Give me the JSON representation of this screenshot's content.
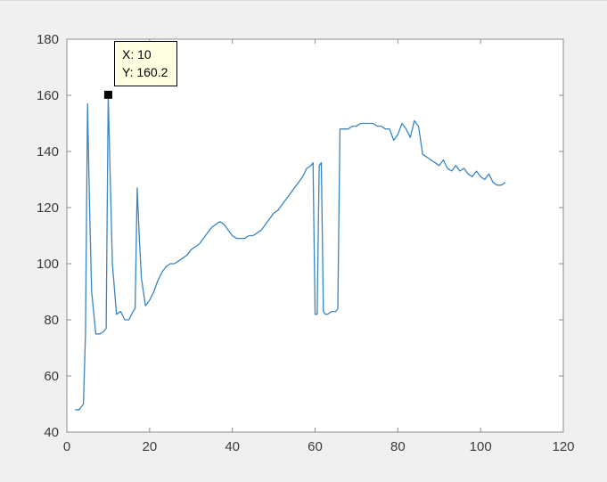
{
  "window": {
    "bg": "#f0f0f0",
    "plot_bg": "#ffffff"
  },
  "tooltip": {
    "line1": "X: 10",
    "line2": "Y: 160.2",
    "bg": "#ffffe1",
    "border_color": "#000000"
  },
  "chart_data": {
    "type": "line",
    "title": "",
    "xlabel": "",
    "ylabel": "",
    "xlim": [
      0,
      120
    ],
    "ylim": [
      40,
      180
    ],
    "xticks": [
      0,
      20,
      40,
      60,
      80,
      100,
      120
    ],
    "yticks": [
      40,
      60,
      80,
      100,
      120,
      140,
      160,
      180
    ],
    "grid": false,
    "legend": null,
    "line_color": "#3a86c2",
    "axis_color": "#8c8c8c",
    "tick_label_color": "#3b3b3b",
    "marker_color": "#000000",
    "datatip_point": {
      "x": 10,
      "y": 160.2
    },
    "points": [
      [
        2,
        48
      ],
      [
        3,
        48
      ],
      [
        4,
        50
      ],
      [
        4.5,
        75
      ],
      [
        5,
        157
      ],
      [
        5.5,
        120
      ],
      [
        6,
        90
      ],
      [
        7,
        75
      ],
      [
        8,
        75
      ],
      [
        9,
        76
      ],
      [
        9.5,
        77
      ],
      [
        10,
        160.2
      ],
      [
        10.5,
        130
      ],
      [
        11,
        100
      ],
      [
        12,
        82
      ],
      [
        13,
        83
      ],
      [
        14,
        80
      ],
      [
        15,
        80
      ],
      [
        16,
        83
      ],
      [
        16.5,
        84
      ],
      [
        17,
        127
      ],
      [
        17.5,
        110
      ],
      [
        18,
        95
      ],
      [
        19,
        85
      ],
      [
        20,
        87
      ],
      [
        21,
        90
      ],
      [
        22,
        94
      ],
      [
        23,
        97
      ],
      [
        24,
        99
      ],
      [
        25,
        100
      ],
      [
        26,
        100
      ],
      [
        27,
        101
      ],
      [
        28,
        102
      ],
      [
        29,
        103
      ],
      [
        30,
        105
      ],
      [
        31,
        106
      ],
      [
        32,
        107
      ],
      [
        33,
        109
      ],
      [
        34,
        111
      ],
      [
        35,
        113
      ],
      [
        36,
        114
      ],
      [
        37,
        115
      ],
      [
        38,
        114
      ],
      [
        39,
        112
      ],
      [
        40,
        110
      ],
      [
        41,
        109
      ],
      [
        42,
        109
      ],
      [
        43,
        109
      ],
      [
        44,
        110
      ],
      [
        45,
        110
      ],
      [
        46,
        111
      ],
      [
        47,
        112
      ],
      [
        48,
        114
      ],
      [
        49,
        116
      ],
      [
        50,
        118
      ],
      [
        51,
        119
      ],
      [
        52,
        121
      ],
      [
        53,
        123
      ],
      [
        54,
        125
      ],
      [
        55,
        127
      ],
      [
        56,
        129
      ],
      [
        57,
        131
      ],
      [
        58,
        134
      ],
      [
        59,
        135
      ],
      [
        59.5,
        136
      ],
      [
        60,
        82
      ],
      [
        60.5,
        82
      ],
      [
        61,
        135
      ],
      [
        61.5,
        136
      ],
      [
        62,
        83
      ],
      [
        62.5,
        82
      ],
      [
        63,
        82
      ],
      [
        64,
        83
      ],
      [
        65,
        83
      ],
      [
        65.5,
        84
      ],
      [
        66,
        148
      ],
      [
        67,
        148
      ],
      [
        68,
        148
      ],
      [
        69,
        149
      ],
      [
        70,
        149
      ],
      [
        71,
        150
      ],
      [
        72,
        150
      ],
      [
        73,
        150
      ],
      [
        74,
        150
      ],
      [
        75,
        149
      ],
      [
        76,
        149
      ],
      [
        77,
        148
      ],
      [
        78,
        148
      ],
      [
        79,
        144
      ],
      [
        80,
        146
      ],
      [
        81,
        150
      ],
      [
        82,
        148
      ],
      [
        83,
        145
      ],
      [
        84,
        151
      ],
      [
        85,
        149
      ],
      [
        86,
        139
      ],
      [
        87,
        138
      ],
      [
        88,
        137
      ],
      [
        89,
        136
      ],
      [
        90,
        135
      ],
      [
        91,
        137
      ],
      [
        92,
        134
      ],
      [
        93,
        133
      ],
      [
        94,
        135
      ],
      [
        95,
        133
      ],
      [
        96,
        134
      ],
      [
        97,
        132
      ],
      [
        98,
        131
      ],
      [
        99,
        133
      ],
      [
        100,
        131
      ],
      [
        101,
        130
      ],
      [
        102,
        132
      ],
      [
        103,
        129
      ],
      [
        104,
        128
      ],
      [
        105,
        128
      ],
      [
        106,
        129
      ]
    ]
  }
}
